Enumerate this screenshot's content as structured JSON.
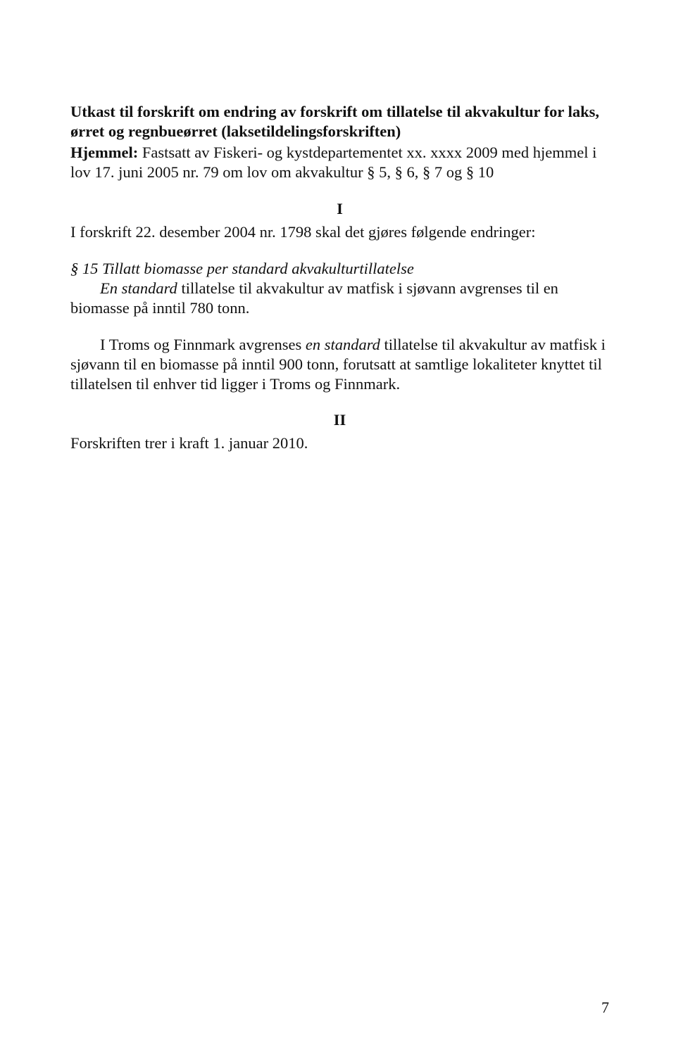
{
  "title": "Utkast til forskrift om endring av forskrift om tillatelse til akvakultur for laks, ørret og regnbueørret (laksetildelingsforskriften)",
  "hjemmel_label": "Hjemmel:",
  "hjemmel_text": " Fastsatt av Fiskeri- og kystdepartementet xx. xxxx 2009 med hjemmel i lov 17. juni 2005 nr. 79 om lov om akvakultur § 5, § 6, § 7 og § 10",
  "section_i": "I",
  "intro_line": "I forskrift 22. desember 2004 nr. 1798 skal det gjøres følgende endringer:",
  "p15_head": "§ 15 Tillatt biomasse per standard akvakulturtillatelse",
  "p15_line2_a": "En standard",
  "p15_line2_b": " tillatelse til akvakultur av matfisk i sjøvann avgrenses til en biomasse på inntil 780 tonn.",
  "troms_a": "I Troms og Finnmark avgrenses ",
  "troms_i": "en standard",
  "troms_b": " tillatelse til akvakultur av matfisk i sjøvann til en biomasse på inntil 900 tonn, forutsatt at samtlige lokaliteter knyttet til tillatelsen til enhver tid ligger i Troms og Finnmark.",
  "section_ii": "II",
  "ikraft": "Forskriften trer i kraft 1. januar 2010.",
  "pagenum": "7"
}
